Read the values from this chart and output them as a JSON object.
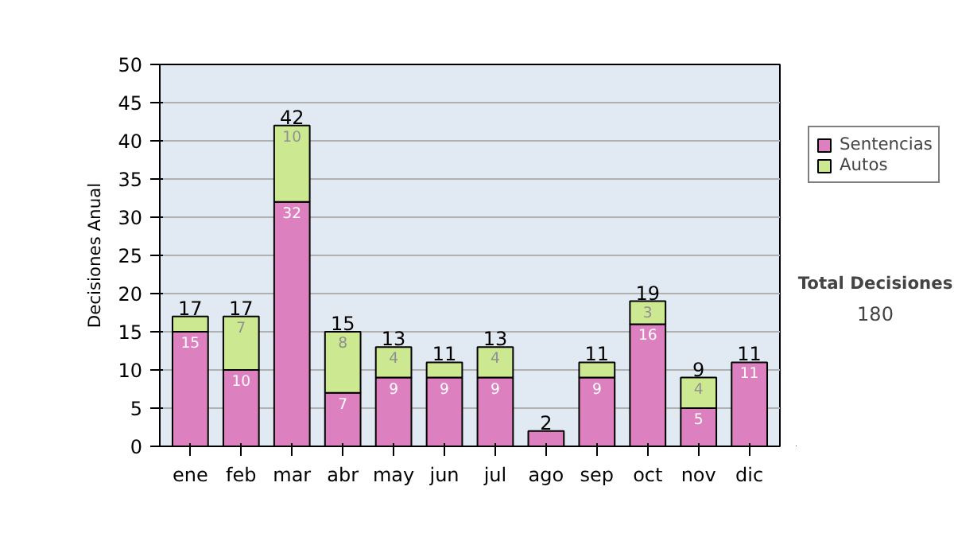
{
  "chart_data": {
    "type": "bar",
    "stacked": true,
    "categories": [
      "ene",
      "feb",
      "mar",
      "abr",
      "may",
      "jun",
      "jul",
      "ago",
      "sep",
      "oct",
      "nov",
      "dic"
    ],
    "series": [
      {
        "name": "Sentencias",
        "color": "#dd80c0",
        "values": [
          15,
          10,
          32,
          7,
          9,
          9,
          9,
          2,
          9,
          16,
          5,
          11
        ],
        "value_labels": [
          "15",
          "10",
          "32",
          "7",
          "9",
          "9",
          "9",
          null,
          "9",
          "16",
          "5",
          "11"
        ]
      },
      {
        "name": "Autos",
        "color": "#cce890",
        "values": [
          2,
          7,
          10,
          8,
          4,
          2,
          4,
          0,
          2,
          3,
          4,
          0
        ],
        "value_labels": [
          null,
          "7",
          "10",
          "8",
          "4",
          null,
          "4",
          null,
          null,
          "3",
          "4",
          null
        ]
      }
    ],
    "totals": [
      "17",
      "17",
      "42",
      "15",
      "13",
      "11",
      "13",
      "2",
      "11",
      "19",
      "9",
      "11"
    ],
    "ylabel": "Decisiones Anual",
    "ylim": [
      0,
      50
    ],
    "yticks": [
      0,
      5,
      10,
      15,
      20,
      25,
      30,
      35,
      40,
      45,
      50
    ],
    "grid": "y",
    "legend": "right",
    "annotations": [
      "Total Decisiones",
      "180"
    ]
  }
}
